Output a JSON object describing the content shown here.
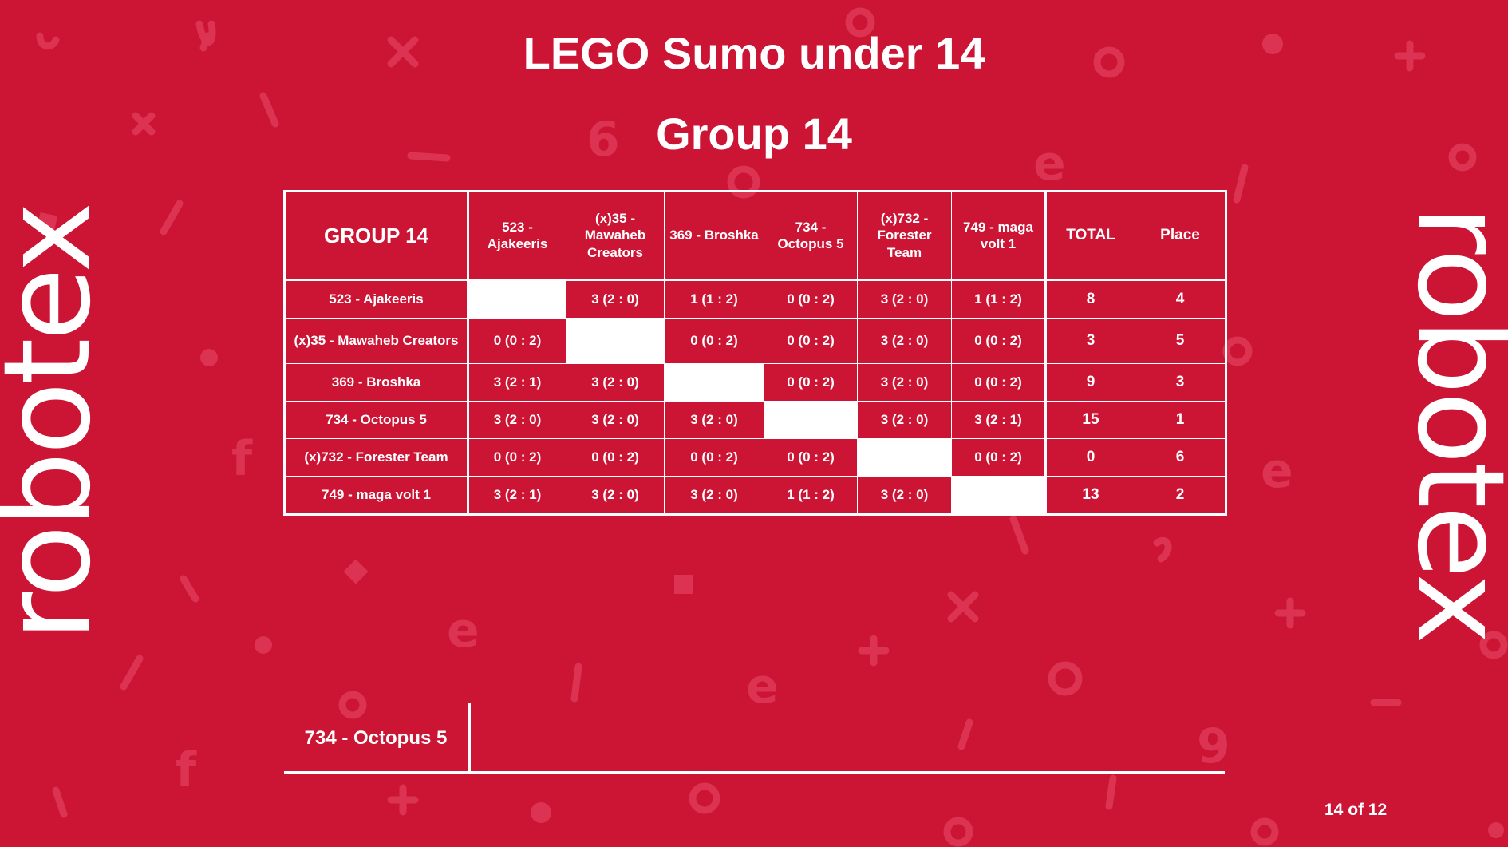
{
  "brand": {
    "left_logo_text": "robotex",
    "right_logo_text": "robotex"
  },
  "title": "LEGO Sumo under 14",
  "subtitle": "Group 14",
  "table": {
    "corner_label": "GROUP 14",
    "columns": [
      "523 - Ajakeeris",
      "(x)35 - Mawaheb Creators",
      "369 - Broshka",
      "734 - Octopus 5",
      "(x)732 - Forester Team",
      "749 - maga volt 1"
    ],
    "total_label": "TOTAL",
    "place_label": "Place",
    "rows": [
      {
        "name": "523 - Ajakeeris",
        "cells": [
          "",
          "3  (2 : 0)",
          "1  (1 : 2)",
          "0  (0 : 2)",
          "3  (2 : 0)",
          "1  (1 : 2)"
        ],
        "total": "8",
        "place": "4"
      },
      {
        "name": "(x)35 - Mawaheb Creators",
        "cells": [
          "0  (0 : 2)",
          "",
          "0  (0 : 2)",
          "0  (0 : 2)",
          "3  (2 : 0)",
          "0  (0 : 2)"
        ],
        "total": "3",
        "place": "5"
      },
      {
        "name": "369 - Broshka",
        "cells": [
          "3  (2 : 1)",
          "3  (2 : 0)",
          "",
          "0  (0 : 2)",
          "3  (2 : 0)",
          "0  (0 : 2)"
        ],
        "total": "9",
        "place": "3"
      },
      {
        "name": "734 - Octopus 5",
        "cells": [
          "3  (2 : 0)",
          "3  (2 : 0)",
          "3  (2 : 0)",
          "",
          "3  (2 : 0)",
          "3  (2 : 1)"
        ],
        "total": "15",
        "place": "1"
      },
      {
        "name": "(x)732 - Forester Team",
        "cells": [
          "0  (0 : 2)",
          "0  (0 : 2)",
          "0  (0 : 2)",
          "0  (0 : 2)",
          "",
          "0  (0 : 2)"
        ],
        "total": "0",
        "place": "6"
      },
      {
        "name": "749 - maga volt 1",
        "cells": [
          "3  (2 : 1)",
          "3  (2 : 0)",
          "3  (2 : 0)",
          "1  (1 : 2)",
          "3  (2 : 0)",
          ""
        ],
        "total": "13",
        "place": "2"
      }
    ]
  },
  "winner": "734 - Octopus 5",
  "page_counter": "14 of 12",
  "colors": {
    "background": "#cc1434",
    "decor": "#dd3a55",
    "text": "#ffffff"
  }
}
